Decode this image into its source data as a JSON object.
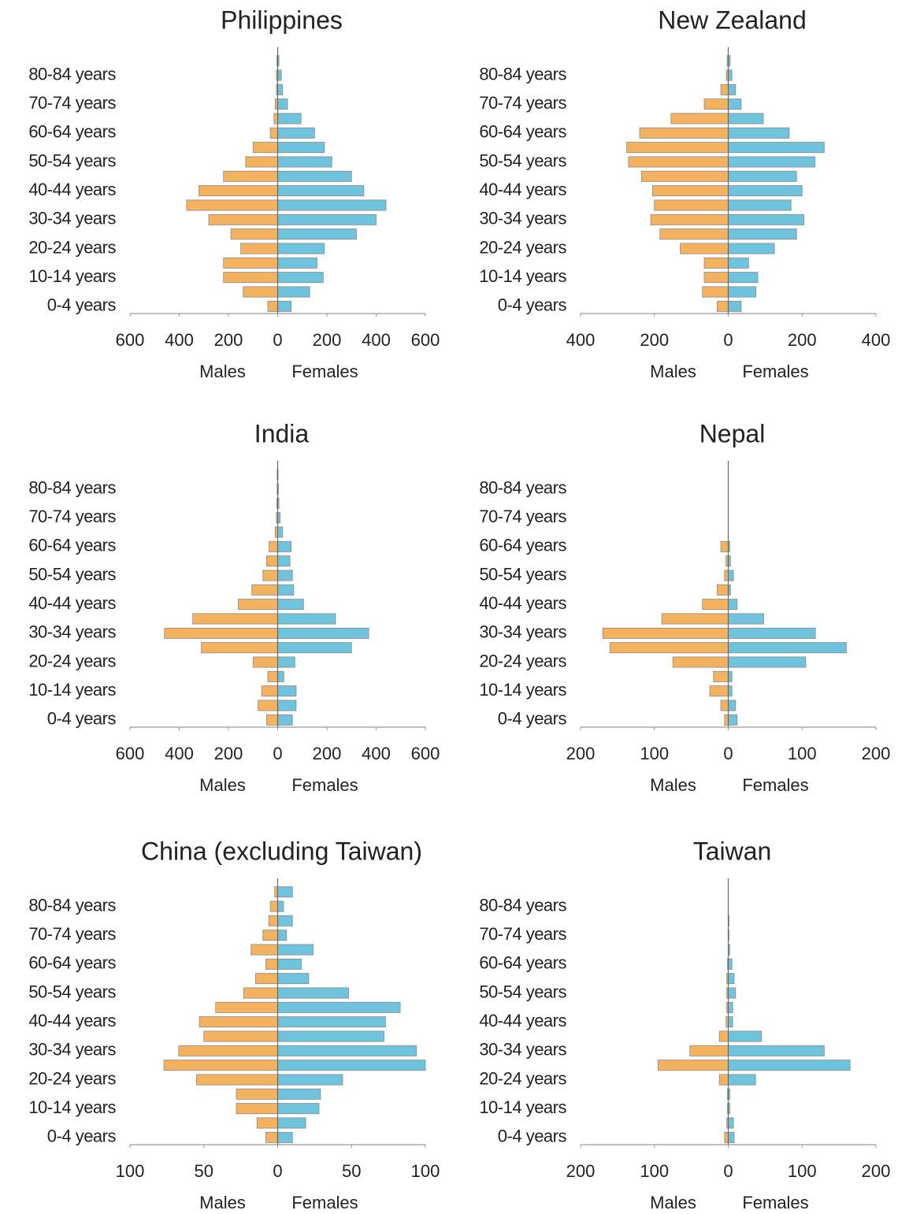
{
  "chart_data": [
    {
      "type": "bar",
      "orientation": "horizontal",
      "title": "Philippines",
      "categories": [
        "0-4 years",
        null,
        "10-14 years",
        null,
        "20-24 years",
        null,
        "30-34 years",
        null,
        "40-44 years",
        null,
        "50-54 years",
        null,
        "60-64 years",
        null,
        "70-74 years",
        null,
        "80-84 years",
        null
      ],
      "series": [
        {
          "name": "Males",
          "color": "#f4b25f",
          "values": [
            -40,
            -140,
            -220,
            -220,
            -150,
            -190,
            -280,
            -370,
            -320,
            -220,
            -130,
            -100,
            -30,
            -15,
            -10,
            -5,
            -5,
            -3
          ]
        },
        {
          "name": "Females",
          "color": "#6fc3dc",
          "values": [
            55,
            130,
            185,
            160,
            190,
            320,
            400,
            440,
            350,
            300,
            220,
            190,
            150,
            95,
            40,
            20,
            15,
            5
          ]
        }
      ],
      "xlim": [
        -600,
        600
      ],
      "xticks": [
        {
          "value": -600,
          "label": "600"
        },
        {
          "value": -400,
          "label": "400"
        },
        {
          "value": -200,
          "label": "200"
        },
        0,
        200,
        400,
        600
      ]
    },
    {
      "type": "bar",
      "orientation": "horizontal",
      "title": "New Zealand",
      "categories": [
        "0-4 years",
        null,
        "10-14 years",
        null,
        "20-24 years",
        null,
        "30-34 years",
        null,
        "40-44 years",
        null,
        "50-54 years",
        null,
        "60-64 years",
        null,
        "70-74 years",
        null,
        "80-84 years",
        null
      ],
      "series": [
        {
          "name": "Males",
          "color": "#f4b25f",
          "values": [
            -30,
            -70,
            -65,
            -65,
            -130,
            -185,
            -210,
            -200,
            -205,
            -235,
            -270,
            -275,
            -240,
            -155,
            -65,
            -20,
            -5,
            -3
          ]
        },
        {
          "name": "Females",
          "color": "#6fc3dc",
          "values": [
            35,
            75,
            80,
            55,
            125,
            185,
            205,
            170,
            200,
            185,
            235,
            260,
            165,
            95,
            35,
            20,
            10,
            5
          ]
        }
      ],
      "xlim": [
        -400,
        400
      ],
      "xticks": [
        {
          "value": -400,
          "label": "400"
        },
        {
          "value": -200,
          "label": "200"
        },
        0,
        200,
        400
      ]
    },
    {
      "type": "bar",
      "orientation": "horizontal",
      "title": "India",
      "categories": [
        "0-4 years",
        null,
        "10-14 years",
        null,
        "20-24 years",
        null,
        "30-34 years",
        null,
        "40-44 years",
        null,
        "50-54 years",
        null,
        "60-64 years",
        null,
        "70-74 years",
        null,
        "80-84 years",
        null
      ],
      "series": [
        {
          "name": "Males",
          "color": "#f4b25f",
          "values": [
            -45,
            -80,
            -65,
            -40,
            -100,
            -310,
            -460,
            -345,
            -160,
            -105,
            -60,
            -45,
            -35,
            -10,
            -5,
            -3,
            -2,
            -2
          ]
        },
        {
          "name": "Females",
          "color": "#6fc3dc",
          "values": [
            60,
            75,
            75,
            25,
            70,
            300,
            370,
            235,
            105,
            65,
            60,
            50,
            55,
            20,
            10,
            5,
            3,
            2
          ]
        }
      ],
      "xlim": [
        -600,
        600
      ],
      "xticks": [
        {
          "value": -600,
          "label": "600"
        },
        {
          "value": -400,
          "label": "400"
        },
        {
          "value": -200,
          "label": "200"
        },
        0,
        200,
        400,
        600
      ]
    },
    {
      "type": "bar",
      "orientation": "horizontal",
      "title": "Nepal",
      "categories": [
        "0-4 years",
        null,
        "10-14 years",
        null,
        "20-24 years",
        null,
        "30-34 years",
        null,
        "40-44 years",
        null,
        "50-54 years",
        null,
        "60-64 years",
        null,
        "70-74 years",
        null,
        "80-84 years",
        null
      ],
      "series": [
        {
          "name": "Males",
          "color": "#f4b25f",
          "values": [
            -5,
            -10,
            -25,
            -20,
            -75,
            -160,
            -170,
            -90,
            -35,
            -15,
            -5,
            -3,
            -10,
            0,
            0,
            0,
            0,
            0
          ]
        },
        {
          "name": "Females",
          "color": "#6fc3dc",
          "values": [
            12,
            10,
            5,
            5,
            105,
            160,
            118,
            48,
            12,
            3,
            7,
            3,
            2,
            0,
            0,
            0,
            0,
            0
          ]
        }
      ],
      "xlim": [
        -200,
        200
      ],
      "xticks": [
        {
          "value": -200,
          "label": "200"
        },
        {
          "value": -100,
          "label": "100"
        },
        0,
        100,
        200
      ]
    },
    {
      "type": "bar",
      "orientation": "horizontal",
      "title": "China (excluding Taiwan)",
      "categories": [
        "0-4 years",
        null,
        "10-14 years",
        null,
        "20-24 years",
        null,
        "30-34 years",
        null,
        "40-44 years",
        null,
        "50-54 years",
        null,
        "60-64 years",
        null,
        "70-74 years",
        null,
        "80-84 years",
        null
      ],
      "series": [
        {
          "name": "Males",
          "color": "#f4b25f",
          "values": [
            -8,
            -14,
            -28,
            -28,
            -55,
            -77,
            -67,
            -50,
            -53,
            -42,
            -23,
            -15,
            -8,
            -18,
            -10,
            -6,
            -5,
            -2
          ]
        },
        {
          "name": "Females",
          "color": "#6fc3dc",
          "values": [
            10,
            19,
            28,
            29,
            44,
            100,
            94,
            72,
            73,
            83,
            48,
            21,
            16,
            24,
            6,
            10,
            4,
            10
          ]
        }
      ],
      "xlim": [
        -100,
        100
      ],
      "xticks": [
        {
          "value": -100,
          "label": "100"
        },
        {
          "value": -50,
          "label": "50"
        },
        0,
        50,
        100
      ]
    },
    {
      "type": "bar",
      "orientation": "horizontal",
      "title": "Taiwan",
      "categories": [
        "0-4 years",
        null,
        "10-14 years",
        null,
        "20-24 years",
        null,
        "30-34 years",
        null,
        "40-44 years",
        null,
        "50-54 years",
        null,
        "60-64 years",
        null,
        "70-74 years",
        null,
        "80-84 years",
        null
      ],
      "series": [
        {
          "name": "Males",
          "color": "#f4b25f",
          "values": [
            -5,
            -2,
            -1,
            -1,
            -12,
            -95,
            -52,
            -12,
            -3,
            -2,
            -2,
            -2,
            -1,
            0,
            0,
            0,
            0,
            0
          ]
        },
        {
          "name": "Females",
          "color": "#6fc3dc",
          "values": [
            8,
            7,
            2,
            2,
            37,
            165,
            130,
            45,
            6,
            6,
            10,
            8,
            5,
            2,
            1,
            1,
            0,
            0
          ]
        }
      ],
      "xlim": [
        -200,
        200
      ],
      "xticks": [
        {
          "value": -200,
          "label": "200"
        },
        {
          "value": -100,
          "label": "100"
        },
        0,
        100,
        200
      ]
    }
  ]
}
